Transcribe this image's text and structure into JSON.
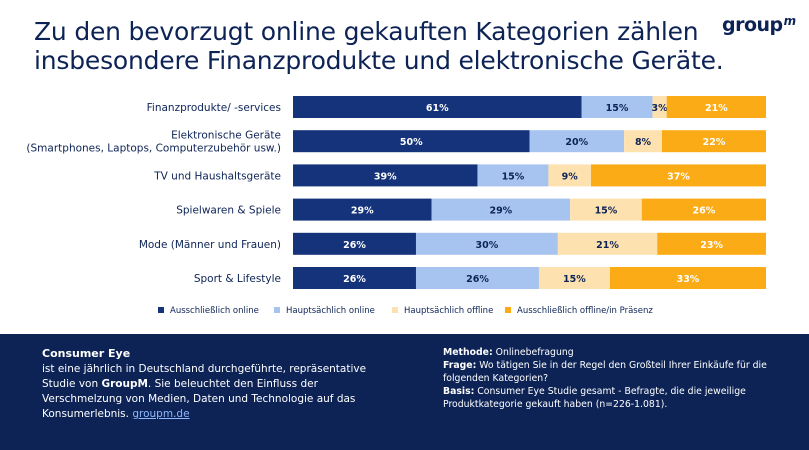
{
  "header": {
    "title_line1": "Zu den bevorzugt online gekauften Kategorien zählen",
    "title_line2": "insbesondere Finanzprodukte und elektronische Geräte.",
    "logo_text": "group",
    "logo_sup": "m"
  },
  "chart_data": {
    "type": "bar",
    "orientation": "horizontal-stacked-100",
    "categories": [
      [
        "Finanzprodukte/ -services"
      ],
      [
        "Elektronische Geräte",
        "(Smartphones, Laptops, Computerzubehör usw.)"
      ],
      [
        "TV und Haushaltsgeräte"
      ],
      [
        "Spielwaren & Spiele"
      ],
      [
        "Mode (Männer und Frauen)"
      ],
      [
        "Sport & Lifestyle"
      ]
    ],
    "series": [
      {
        "name": "Ausschließlich online",
        "color": "#14337a",
        "label_color": "#ffffff",
        "values": [
          61,
          50,
          39,
          29,
          26,
          26
        ]
      },
      {
        "name": "Hauptsächlich online",
        "color": "#a7c3ef",
        "label_color": "#0d2356",
        "values": [
          15,
          20,
          15,
          29,
          30,
          26
        ]
      },
      {
        "name": "Hauptsächlich offline",
        "color": "#fde2b0",
        "label_color": "#0d2356",
        "values": [
          3,
          8,
          9,
          15,
          21,
          15
        ]
      },
      {
        "name": "Ausschließlich offline/in Präsenz",
        "color": "#fbab16",
        "label_color": "#ffffff",
        "values": [
          21,
          22,
          37,
          26,
          23,
          33
        ]
      }
    ],
    "legend_position": "bottom"
  },
  "footer": {
    "left_title": "Consumer Eye",
    "left_text_1": "ist eine jährlich in Deutschland durchgeführte, repräsentative Studie von ",
    "left_brand": "GroupM",
    "left_text_2": ". Sie beleuchtet den Einfluss der Verschmelzung von Medien, Daten und Technologie auf das Konsumerlebnis. ",
    "left_link": "groupm.de",
    "method_label": "Methode:",
    "method_text": " Onlinebefragung",
    "question_label": "Frage:",
    "question_text": " Wo tätigen Sie in der Regel den Großteil Ihrer Einkäufe für die folgenden Kategorien?",
    "basis_label": "Basis:",
    "basis_text": " Consumer Eye Studie gesamt - Befragte, die die jeweilige Produktkategorie gekauft haben (n=226-1.081)."
  }
}
